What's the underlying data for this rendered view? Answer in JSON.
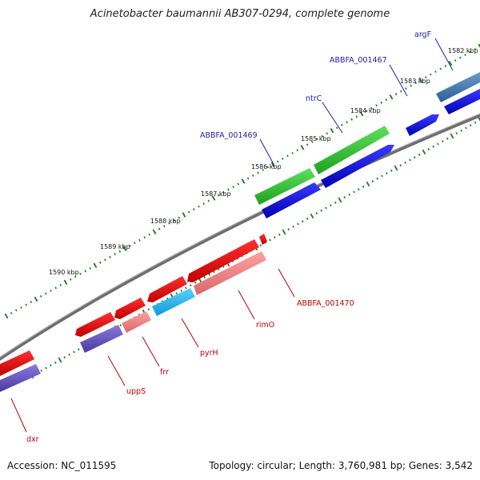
{
  "title": "Acinetobacter baumannii AB307-0294, complete genome",
  "accession": "Accession: NC_011595",
  "summary": "Topology: circular; Length: 3,760,981 bp; Genes: 3,542",
  "colors": {
    "backbone": "#7f7f7f",
    "tick_green": "#1a7a1a",
    "forward_cds": "#0000e6",
    "reverse_cds": "#f00000",
    "forward_label": "#2020b0",
    "reverse_label": "#c00000"
  },
  "scale_labels": [
    "1582 kbp",
    "1583 kbp",
    "1584 kbp",
    "1585 kbp",
    "1586 kbp",
    "1587 kbp",
    "1588 kbp",
    "1589 kbp",
    "1590 kbp"
  ],
  "forward_genes": [
    {
      "name": "argF",
      "color": "#4a7fb5",
      "shade": "#2d5f96"
    },
    {
      "name": "ABBFA_001467",
      "color": "#0000e6",
      "shade": "#0000aa"
    },
    {
      "name": "ntrC",
      "color": "#33cc33",
      "shade": "#1a9a1a"
    },
    {
      "name": "ABBFA_001469",
      "color": "#33cc33",
      "shade": "#1a9a1a"
    }
  ],
  "reverse_genes": [
    {
      "name": "ABBFA_001470",
      "color": "#f00000",
      "shade": "#b00000"
    },
    {
      "name": "rimO",
      "color": "#f08080",
      "shade": "#c06060"
    },
    {
      "name": "pyrH",
      "color": "#1ab3ff",
      "shade": "#0088cc"
    },
    {
      "name": "frr",
      "color": "#f08080",
      "shade": "#c06060"
    },
    {
      "name": "uppS",
      "color": "#6a5acd",
      "shade": "#4a3aa0"
    },
    {
      "name": "dxr",
      "color": "#6a5acd",
      "shade": "#4a3aa0"
    }
  ]
}
